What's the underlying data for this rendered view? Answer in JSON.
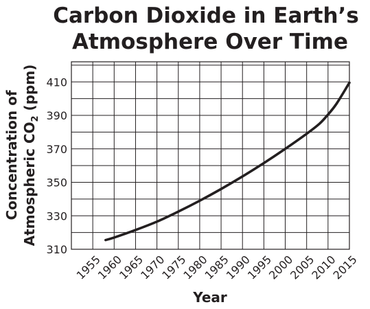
{
  "chart_data": {
    "type": "line",
    "title_line1": "Carbon Dioxide in Earth’s",
    "title_line2": "Atmosphere Over Time",
    "xlabel": "Year",
    "ylabel_line1": "Concentration of",
    "ylabel_line2_pre": "Atmospheric CO",
    "ylabel_line2_sub": "2",
    "ylabel_line2_post": " (ppm)",
    "xlim": [
      1950,
      2015
    ],
    "ylim": [
      310,
      422
    ],
    "x_ticks": [
      1955,
      1960,
      1965,
      1970,
      1975,
      1980,
      1985,
      1990,
      1995,
      2000,
      2005,
      2010,
      2015
    ],
    "y_ticks": [
      310,
      330,
      350,
      370,
      390,
      410
    ],
    "x_grid_step": 5,
    "y_grid_step": 10,
    "grid": true,
    "line_color": "#231f20",
    "series": [
      {
        "x": [
          1958,
          1960,
          1965,
          1970,
          1975,
          1980,
          1985,
          1990,
          1995,
          2000,
          2005,
          2008,
          2010,
          2012,
          2015
        ],
        "y": [
          315.5,
          317.0,
          321.5,
          326.5,
          332.5,
          339.0,
          346.0,
          353.5,
          361.5,
          370.0,
          379.0,
          385.0,
          390.5,
          397.0,
          409.5
        ]
      }
    ]
  }
}
